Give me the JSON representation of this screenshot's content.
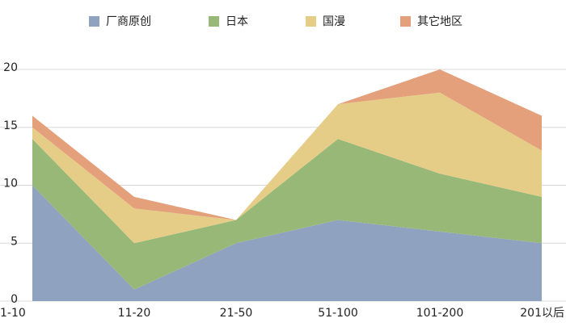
{
  "chart_data": {
    "type": "stacked_area",
    "categories": [
      "1-10",
      "11-20",
      "21-50",
      "51-100",
      "101-200",
      "201以后"
    ],
    "series": [
      {
        "name": "厂商原创",
        "color": "#8fa3c0",
        "values": [
          10,
          1,
          5,
          7,
          6,
          5
        ]
      },
      {
        "name": "日本",
        "color": "#98b877",
        "values": [
          4,
          4,
          2,
          7,
          5,
          4
        ]
      },
      {
        "name": "国漫",
        "color": "#e5cd88",
        "values": [
          1,
          3,
          0,
          3,
          7,
          4
        ]
      },
      {
        "name": "其它地区",
        "color": "#e3a07a",
        "values": [
          1,
          1,
          0,
          0,
          2,
          3
        ]
      }
    ],
    "ylim": [
      0,
      20
    ],
    "yticks": [
      0,
      5,
      10,
      15,
      20
    ],
    "grid": true,
    "legend": "top"
  }
}
